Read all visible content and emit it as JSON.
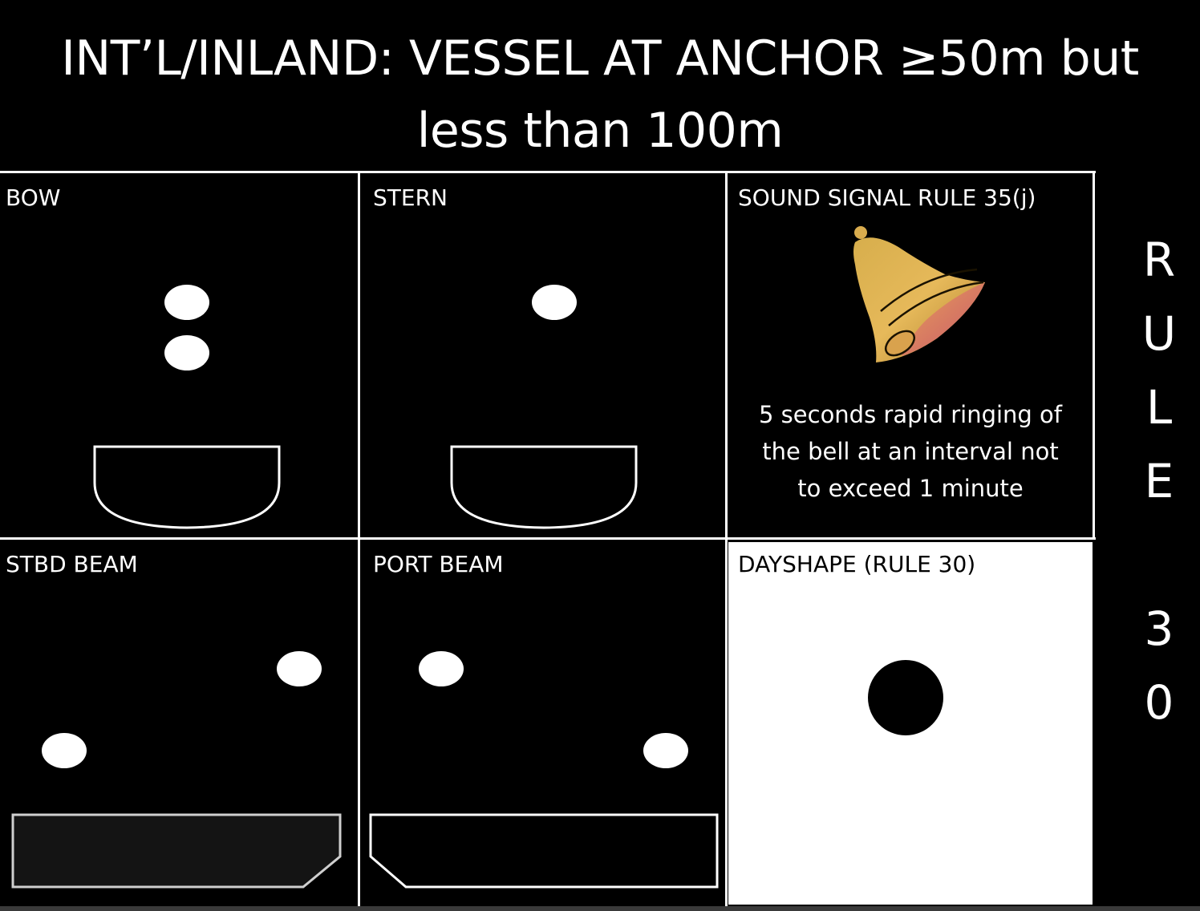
{
  "title": {
    "line1": "INT’L/INLAND: VESSEL AT ANCHOR ≥50m but",
    "line2": "less than 100m"
  },
  "panels": {
    "bow": {
      "label": "BOW"
    },
    "stern": {
      "label": "STERN"
    },
    "sound": {
      "label": "SOUND SIGNAL RULE 35(j)",
      "text_line1": "5 seconds rapid ringing of",
      "text_line2": "the bell at an interval not",
      "text_line3": "to exceed 1 minute",
      "icon": "bell-icon"
    },
    "stbd_beam": {
      "label": "STBD BEAM"
    },
    "port_beam": {
      "label": "PORT BEAM"
    },
    "dayshape": {
      "label": "DAYSHAPE (RULE 30)",
      "shape": "ball"
    }
  },
  "rule_side": {
    "letters": [
      "R",
      "U",
      "L",
      "E",
      "",
      "3",
      "0"
    ]
  },
  "colors": {
    "background": "#000000",
    "light": "#ffffff",
    "bell_gold": "#e8b64a",
    "bell_rose": "#d9785e"
  }
}
